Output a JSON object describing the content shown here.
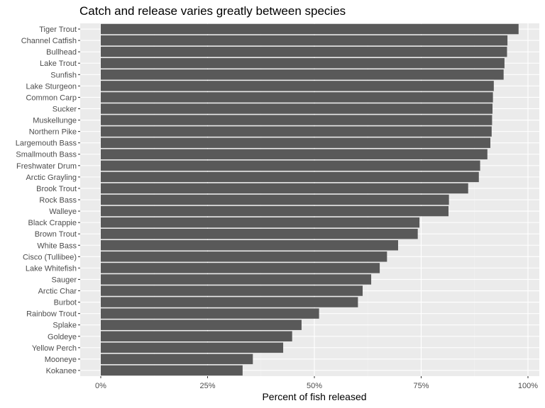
{
  "chart_data": {
    "type": "bar",
    "orientation": "horizontal",
    "title": "Catch and release varies greatly between species",
    "xlabel": "Percent of fish released",
    "ylabel": "",
    "xlim": [
      0,
      1
    ],
    "x_ticks": [
      "0%",
      "25%",
      "50%",
      "75%",
      "100%"
    ],
    "grid": true,
    "colors": {
      "bar": "#595959",
      "panel": "#ebebeb",
      "grid_major": "#ffffff",
      "grid_minor": "#f2f2f2",
      "tick_text": "#4d4d4d"
    },
    "categories": [
      "Tiger Trout",
      "Channel Catfish",
      "Bullhead",
      "Lake Trout",
      "Sunfish",
      "Lake Sturgeon",
      "Common Carp",
      "Sucker",
      "Muskellunge",
      "Northern Pike",
      "Largemouth Bass",
      "Smallmouth Bass",
      "Freshwater Drum",
      "Arctic Grayling",
      "Brook Trout",
      "Rock Bass",
      "Walleye",
      "Black Crappie",
      "Brown Trout",
      "White Bass",
      "Cisco (Tullibee)",
      "Lake Whitefish",
      "Sauger",
      "Arctic Char",
      "Burbot",
      "Rainbow Trout",
      "Splake",
      "Goldeye",
      "Yellow Perch",
      "Mooneye",
      "Kokanee"
    ],
    "values": [
      0.978,
      0.952,
      0.951,
      0.945,
      0.943,
      0.92,
      0.918,
      0.917,
      0.916,
      0.915,
      0.912,
      0.905,
      0.888,
      0.885,
      0.86,
      0.815,
      0.814,
      0.746,
      0.742,
      0.696,
      0.67,
      0.653,
      0.633,
      0.613,
      0.602,
      0.511,
      0.47,
      0.448,
      0.427,
      0.356,
      0.332
    ]
  }
}
